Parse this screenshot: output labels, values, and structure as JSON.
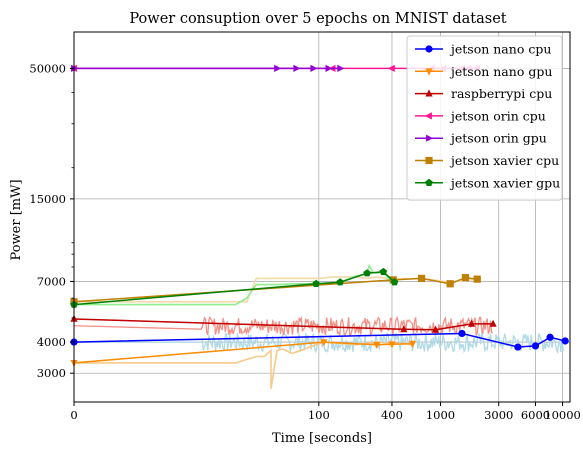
{
  "chart_data": {
    "type": "line",
    "title": "Power consuption over 5 epochs on MNIST dataset",
    "xlabel": "Time [seconds]",
    "ylabel": "Power [mW]",
    "x_scale": "log1p",
    "y_scale": "log",
    "xlim": [
      0,
      11500
    ],
    "ylim": [
      2300,
      70000
    ],
    "x_ticks": [
      0,
      100,
      400,
      1000,
      3000,
      6000,
      10000
    ],
    "x_tick_labels": [
      "0",
      "100",
      "400",
      "1000",
      "3000",
      "6000",
      "10000"
    ],
    "y_ticks": [
      3000,
      4000,
      7000,
      15000,
      50000
    ],
    "y_tick_labels": [
      "3000",
      "4000",
      "7000",
      "15000",
      "50000"
    ],
    "y_minor_ticks": [
      5000,
      6000,
      8000,
      9000,
      10000,
      20000,
      30000,
      40000
    ],
    "grid": true,
    "legend_position": "top-right",
    "series": [
      {
        "name": "jetson nano cpu",
        "color": "#0000ff",
        "marker": "circle",
        "x": [
          0,
          1500,
          4300,
          6000,
          7900,
          10500
        ],
        "y": [
          4000,
          4330,
          3820,
          3860,
          4180,
          4040
        ]
      },
      {
        "name": "jetson nano gpu",
        "color": "#ff8c00",
        "marker": "triangle-down",
        "x": [
          0,
          110,
          300,
          400,
          590
        ],
        "y": [
          3300,
          4000,
          3900,
          3920,
          3940
        ]
      },
      {
        "name": "raspberrypi cpu",
        "color": "#c00000",
        "marker": "triangle-up",
        "x": [
          0,
          500,
          910,
          1800,
          2700
        ],
        "y": [
          4950,
          4500,
          4480,
          4730,
          4730
        ]
      },
      {
        "name": "jetson orin cpu",
        "color": "#ff1493",
        "marker": "triangle-left",
        "x": [
          0,
          130,
          400,
          850,
          1050,
          1500,
          1700,
          2000
        ],
        "y": [
          50000,
          50000,
          50000,
          50000,
          50000,
          50000,
          50000,
          50000
        ]
      },
      {
        "name": "jetson orin gpu",
        "color": "#9400d3",
        "marker": "triangle-right",
        "x": [
          0,
          45,
          65,
          90,
          120,
          150
        ],
        "y": [
          50000,
          50000,
          50000,
          50000,
          50000,
          50000
        ]
      },
      {
        "name": "jetson xavier cpu",
        "color": "#bf7f00",
        "marker": "square",
        "x": [
          0,
          410,
          700,
          1200,
          1600,
          2000
        ],
        "y": [
          5800,
          7100,
          7200,
          6850,
          7250,
          7150
        ]
      },
      {
        "name": "jetson xavier gpu",
        "color": "#008000",
        "marker": "pentagon",
        "x": [
          0,
          95,
          150,
          250,
          340,
          420
        ],
        "y": [
          5650,
          6850,
          6950,
          7550,
          7650,
          6950
        ]
      }
    ],
    "raw_traces": [
      {
        "series": "jetson nano cpu",
        "color": "#add8e6",
        "x_range": [
          0,
          10500
        ],
        "y_base": 4000,
        "y_spread": 350
      },
      {
        "series": "raspberrypi cpu",
        "color": "#f28b82",
        "x_range": [
          0,
          2700
        ],
        "y_base": 4650,
        "y_spread": 380
      },
      {
        "series": "jetson nano gpu",
        "color": "#f8c98a",
        "x": [
          0,
          20,
          30,
          35,
          40,
          40,
          45,
          50,
          60,
          110,
          150,
          200,
          300,
          400,
          500,
          590
        ],
        "y": [
          3300,
          3300,
          3500,
          3500,
          3700,
          2600,
          3700,
          3750,
          3600,
          4000,
          3950,
          3900,
          4000,
          3950,
          3950,
          3900
        ]
      },
      {
        "series": "jetson xavier cpu",
        "color": "#f5d9a8",
        "x": [
          0,
          25,
          30,
          60,
          100,
          130,
          200,
          250,
          300,
          410,
          700,
          1200,
          2000
        ],
        "y": [
          5800,
          5800,
          7200,
          7200,
          7200,
          7300,
          7300,
          7200,
          7300,
          7150,
          7200,
          6950,
          7150
        ]
      },
      {
        "series": "jetson xavier gpu",
        "color": "#90ee90",
        "x": [
          0,
          20,
          25,
          30,
          45,
          60,
          95,
          150,
          200,
          250,
          260,
          280,
          300,
          340,
          380,
          420
        ],
        "y": [
          5650,
          5650,
          6000,
          6800,
          6800,
          6850,
          6850,
          6950,
          7350,
          7500,
          8100,
          7600,
          7550,
          7650,
          7100,
          6950
        ]
      }
    ]
  }
}
